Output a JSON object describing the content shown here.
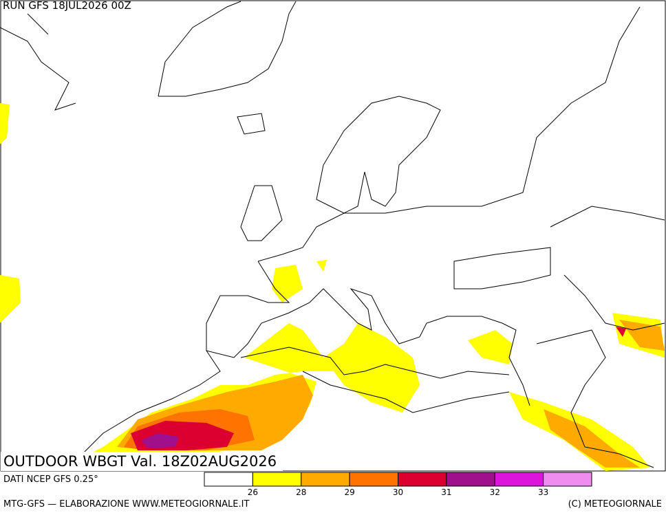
{
  "header": {
    "run": "RUN GFS 18JUL2026 00Z"
  },
  "map": {
    "title": "OUTDOOR WBGT Val. 18Z02AUG2026"
  },
  "legend": {
    "source": "DATI NCEP GFS 0.25°",
    "colors": [
      "#ffffff",
      "#ffff00",
      "#ffaa00",
      "#ff7300",
      "#dc0030",
      "#a0108c",
      "#dc14dc",
      "#f08cf0"
    ],
    "ticks": [
      26,
      28,
      29,
      30,
      31,
      32,
      33
    ]
  },
  "footer": {
    "left": "MTG-GFS — ELABORAZIONE WWW.METEOGIORNALE.IT",
    "right": "(C) METEOGIORNALE"
  }
}
